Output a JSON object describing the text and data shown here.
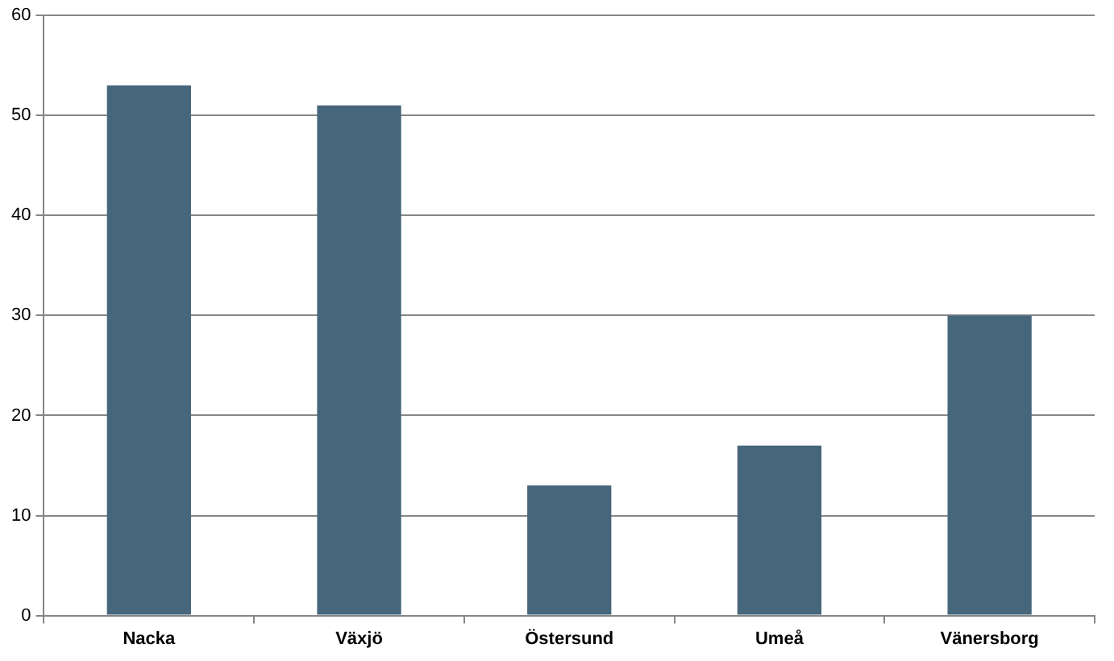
{
  "chart_data": {
    "type": "bar",
    "categories": [
      "Nacka",
      "Växjö",
      "Östersund",
      "Umeå",
      "Vänersborg"
    ],
    "values": [
      53,
      51,
      13,
      17,
      30
    ],
    "color": "#46667c",
    "ylim": [
      0,
      60
    ],
    "yticks": [
      0,
      10,
      20,
      30,
      40,
      50,
      60
    ],
    "grid": "y"
  }
}
